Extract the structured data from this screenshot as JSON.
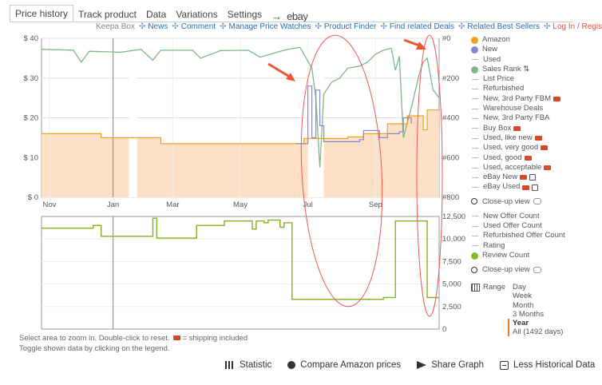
{
  "tabs": [
    {
      "label": "Price history",
      "active": true
    },
    {
      "label": "Track product",
      "active": false
    },
    {
      "label": "Data",
      "active": false
    },
    {
      "label": "Variations",
      "active": false
    },
    {
      "label": "Settings",
      "active": false
    }
  ],
  "tab_arrow": "→",
  "ebay_label": "ebay",
  "subnav": {
    "prefix": "Keepa Box",
    "separator": "✣",
    "links": [
      "News",
      "Comment",
      "Manage Price Watches",
      "Product Finder",
      "Find related Deals",
      "Related Best Sellers"
    ],
    "login": "Log In / Register"
  },
  "legend": {
    "top": [
      {
        "label": "Amazon",
        "kind": "dot",
        "color": "#f2a11e"
      },
      {
        "label": "New",
        "kind": "dot",
        "color": "#8888cc"
      },
      {
        "label": "Used",
        "kind": "dash"
      },
      {
        "label": "Sales Rank ⇅",
        "kind": "dot",
        "color": "#7fb68a"
      },
      {
        "label": "List Price",
        "kind": "dash"
      },
      {
        "label": "Refurbished",
        "kind": "dash"
      },
      {
        "label": "New, 3rd Party FBM",
        "kind": "dash",
        "truck": true
      },
      {
        "label": "Warehouse Deals",
        "kind": "dash"
      },
      {
        "label": "New, 3rd Party FBA",
        "kind": "dash"
      },
      {
        "label": "Buy Box",
        "kind": "dash",
        "truck": true
      },
      {
        "label": "Used, like new",
        "kind": "dash",
        "truck": true
      },
      {
        "label": "Used, very good",
        "kind": "dash",
        "truck": true
      },
      {
        "label": "Used, good",
        "kind": "dash",
        "truck": true
      },
      {
        "label": "Used, acceptable",
        "kind": "dash",
        "truck": true
      },
      {
        "label": "eBay New",
        "kind": "dash",
        "truck": true,
        "lock": true
      },
      {
        "label": "eBay Used",
        "kind": "dash",
        "truck": true,
        "lock": true
      }
    ],
    "closeup_label": "Close-up view",
    "bottom": [
      {
        "label": "New Offer Count",
        "kind": "dash"
      },
      {
        "label": "Used Offer Count",
        "kind": "dash"
      },
      {
        "label": "Refurbished Offer Count",
        "kind": "dash"
      },
      {
        "label": "Rating",
        "kind": "dash"
      },
      {
        "label": "Review Count",
        "kind": "dot",
        "color": "#8db52b"
      }
    ],
    "closeup_label_2": "Close-up view"
  },
  "range": {
    "label": "Range",
    "options": [
      "Day",
      "Week",
      "Month",
      "3 Months",
      "Year",
      "All (1492 days)"
    ],
    "selected": "Year"
  },
  "footnote": {
    "line1": "Select area to zoom in. Double-click to reset.",
    "shipping": "= shipping included",
    "line2": "Toggle shown data by clicking on the legend."
  },
  "actions": [
    {
      "label": "Statistic",
      "icon": "bar-chart-icon"
    },
    {
      "label": "Compare Amazon prices",
      "icon": "globe-icon"
    },
    {
      "label": "Share Graph",
      "icon": "share-icon"
    },
    {
      "label": "Less Historical Data",
      "icon": "minus-square-icon"
    }
  ],
  "chart_data": [
    {
      "type": "line",
      "title": "",
      "x_ticks": [
        "Nov",
        "Jan",
        "Mar",
        "May",
        "Jul",
        "Sep"
      ],
      "y_left_ticks": [
        "$ 0",
        "$ 10",
        "$ 20",
        "$ 30",
        "$ 40"
      ],
      "y_left_range": [
        0,
        40
      ],
      "y_right_ticks": [
        "#0",
        "#200",
        "#400",
        "#600",
        "#800"
      ],
      "y_right_range": [
        0,
        800
      ],
      "y_right_inverted": true,
      "series": [
        {
          "name": "Amazon",
          "color": "#f2a11e",
          "fill": "#fde0c6",
          "points": [
            [
              0,
              16
            ],
            [
              0.15,
              15
            ],
            [
              0.3,
              13.5
            ],
            [
              0.5,
              13.5
            ],
            [
              0.65,
              13.5
            ],
            [
              0.66,
              14.8
            ],
            [
              0.76,
              14.8
            ],
            [
              0.77,
              15.2
            ],
            [
              0.8,
              15.2
            ],
            [
              0.81,
              16
            ],
            [
              0.86,
              16
            ],
            [
              0.87,
              18.5
            ],
            [
              0.9,
              18.5
            ],
            [
              0.92,
              20.5
            ],
            [
              0.95,
              20.5
            ],
            [
              0.96,
              17
            ],
            [
              0.97,
              22
            ],
            [
              1.0,
              22
            ]
          ],
          "gaps": [
            [
              0.22,
              0.24
            ],
            [
              0.67,
              0.71
            ]
          ]
        },
        {
          "name": "New",
          "color": "#8888cc",
          "points": [
            [
              0.64,
              13.5
            ],
            [
              0.66,
              13.5
            ],
            [
              0.67,
              28
            ],
            [
              0.68,
              15
            ],
            [
              0.69,
              27
            ],
            [
              0.7,
              18
            ],
            [
              0.71,
              14
            ],
            [
              0.8,
              14.5
            ],
            [
              0.81,
              16.8
            ],
            [
              0.85,
              15
            ],
            [
              0.87,
              16
            ],
            [
              0.9,
              16.5
            ],
            [
              0.91,
              20
            ],
            [
              0.93,
              18.5
            ]
          ]
        },
        {
          "name": "Sales Rank",
          "color": "#7fb68a",
          "scale": "right",
          "points": [
            [
              0,
              55
            ],
            [
              0.08,
              60
            ],
            [
              0.1,
              120
            ],
            [
              0.12,
              65
            ],
            [
              0.2,
              70
            ],
            [
              0.25,
              55
            ],
            [
              0.28,
              110
            ],
            [
              0.3,
              60
            ],
            [
              0.38,
              60
            ],
            [
              0.4,
              100
            ],
            [
              0.45,
              62
            ],
            [
              0.52,
              60
            ],
            [
              0.55,
              95
            ],
            [
              0.6,
              65
            ],
            [
              0.62,
              55
            ],
            [
              0.65,
              45
            ],
            [
              0.68,
              150
            ],
            [
              0.69,
              300
            ],
            [
              0.7,
              650
            ],
            [
              0.71,
              280
            ],
            [
              0.73,
              220
            ],
            [
              0.75,
              200
            ],
            [
              0.77,
              150
            ],
            [
              0.8,
              140
            ],
            [
              0.82,
              120
            ],
            [
              0.84,
              80
            ],
            [
              0.86,
              60
            ],
            [
              0.88,
              50
            ],
            [
              0.89,
              160
            ],
            [
              0.9,
              90
            ],
            [
              0.91,
              500
            ],
            [
              0.93,
              350
            ],
            [
              0.95,
              180
            ],
            [
              0.96,
              120
            ],
            [
              0.97,
              100
            ],
            [
              0.985,
              260
            ],
            [
              1.0,
              300
            ]
          ]
        }
      ]
    },
    {
      "type": "line",
      "title": "",
      "x_ticks": [
        "Nov",
        "Jan",
        "Mar",
        "May",
        "Jul",
        "Sep"
      ],
      "y_right_ticks": [
        "0",
        "2,500",
        "5,000",
        "7,500",
        "10,000",
        "12,500"
      ],
      "y_right_range": [
        0,
        12500
      ],
      "series": [
        {
          "name": "Review Count",
          "color": "#8db52b",
          "points": [
            [
              0,
              11200
            ],
            [
              0.13,
              11500
            ],
            [
              0.15,
              10300
            ],
            [
              0.27,
              10300
            ],
            [
              0.28,
              12300
            ],
            [
              0.29,
              10100
            ],
            [
              0.38,
              10100
            ],
            [
              0.39,
              11500
            ],
            [
              0.45,
              11500
            ],
            [
              0.46,
              12000
            ],
            [
              0.52,
              12000
            ],
            [
              0.53,
              11100
            ],
            [
              0.54,
              12000
            ],
            [
              0.56,
              11800
            ],
            [
              0.57,
              12100
            ],
            [
              0.59,
              12100
            ],
            [
              0.6,
              11300
            ],
            [
              0.61,
              11800
            ],
            [
              0.62,
              11800
            ],
            [
              0.63,
              3300
            ],
            [
              0.85,
              3300
            ],
            [
              0.86,
              3500
            ],
            [
              0.88,
              3500
            ],
            [
              0.89,
              12000
            ],
            [
              0.96,
              12000
            ],
            [
              0.97,
              3500
            ],
            [
              1.0,
              3500
            ]
          ]
        }
      ]
    }
  ]
}
